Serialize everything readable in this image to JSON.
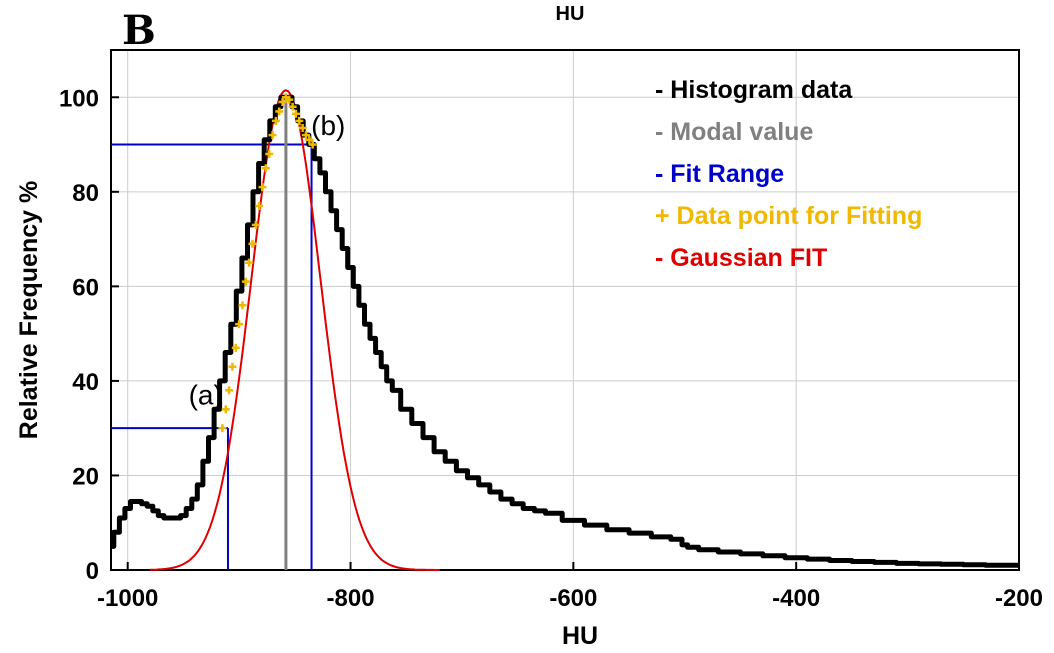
{
  "panel_label": "B",
  "top_label": "HU",
  "chart_data": {
    "type": "line",
    "xlabel": "HU",
    "ylabel": "Relative Frequency %",
    "xlim": [
      -1015,
      -200
    ],
    "ylim": [
      0,
      110
    ],
    "xticks": [
      -1000,
      -800,
      -600,
      -400,
      -200
    ],
    "yticks": [
      0,
      20,
      40,
      60,
      80,
      100
    ],
    "xtick_labels": [
      "-1000",
      "-800",
      "-600",
      "-400",
      "-200"
    ],
    "ytick_labels": [
      "0",
      "20",
      "40",
      "60",
      "80",
      "100"
    ],
    "grid": true,
    "legend_position": "top-right",
    "legend": [
      {
        "text": "- Histogram data",
        "color": "#000000"
      },
      {
        "text": "- Modal value",
        "color": "#808080"
      },
      {
        "text": "- Fit Range",
        "color": "#0000cc"
      },
      {
        "text": "+ Data point for Fitting",
        "color": "#f0b800"
      },
      {
        "text": "- Gaussian FIT",
        "color": "#e00000"
      }
    ],
    "series": [
      {
        "key": "histogram",
        "color": "#000000",
        "x": [
          -1015,
          -1010,
          -1005,
          -1000,
          -995,
          -990,
          -985,
          -980,
          -975,
          -970,
          -965,
          -960,
          -955,
          -950,
          -945,
          -940,
          -935,
          -930,
          -925,
          -920,
          -915,
          -910,
          -905,
          -900,
          -895,
          -890,
          -885,
          -880,
          -875,
          -870,
          -865,
          -860,
          -855,
          -850,
          -845,
          -840,
          -835,
          -830,
          -825,
          -820,
          -815,
          -810,
          -805,
          -800,
          -795,
          -790,
          -785,
          -780,
          -775,
          -770,
          -765,
          -760,
          -750,
          -740,
          -730,
          -720,
          -710,
          -700,
          -690,
          -680,
          -670,
          -660,
          -650,
          -640,
          -630,
          -620,
          -600,
          -580,
          -560,
          -540,
          -520,
          -505,
          -500,
          -495,
          -480,
          -460,
          -440,
          -420,
          -400,
          -380,
          -360,
          -340,
          -320,
          -300,
          -280,
          -260,
          -240,
          -220,
          -200
        ],
        "y": [
          5,
          8,
          11,
          13,
          14.5,
          14.5,
          14,
          13.5,
          12.5,
          11.5,
          11,
          11,
          11,
          11.5,
          13,
          15,
          18,
          23,
          28,
          34,
          40,
          46,
          52,
          59,
          66,
          73,
          80,
          86,
          91,
          95,
          98,
          100,
          100,
          98,
          95,
          92,
          90,
          87,
          84,
          80,
          76,
          72,
          68,
          64,
          60,
          56,
          52,
          49,
          46,
          43,
          40,
          38,
          34,
          31,
          28,
          25,
          23,
          21,
          19.5,
          18,
          16.5,
          15,
          14,
          13,
          12.5,
          12,
          10.5,
          9.5,
          8.5,
          7.8,
          7,
          6.5,
          5.3,
          4.8,
          4.3,
          3.8,
          3.4,
          3,
          2.6,
          2.3,
          2,
          1.8,
          1.6,
          1.4,
          1.3,
          1.2,
          1.1,
          1.0,
          1.0
        ]
      },
      {
        "key": "gaussian",
        "color": "#e00000",
        "mean": -858,
        "sigma": 31,
        "amplitude": 101.5,
        "x_range": [
          -980,
          -720
        ]
      },
      {
        "key": "fit_points",
        "color": "#f0b800",
        "x": [
          -915,
          -912,
          -909,
          -906,
          -903,
          -900,
          -897,
          -894,
          -891,
          -888,
          -885,
          -882,
          -879,
          -876,
          -873,
          -870,
          -867,
          -864,
          -861,
          -858,
          -855,
          -852,
          -849,
          -846,
          -843,
          -840,
          -837,
          -834
        ],
        "y": [
          30,
          34,
          38,
          43,
          47,
          52,
          56,
          61,
          65,
          69,
          73,
          77,
          81,
          85,
          88,
          92,
          95,
          97,
          99,
          100,
          99.5,
          98,
          96.5,
          95,
          93.5,
          92,
          91,
          90
        ]
      }
    ],
    "modal_value": -858,
    "fit_range": {
      "x_low": -910,
      "y_low": 30,
      "x_high": -835,
      "y_high": 90
    },
    "annotations": [
      {
        "text": "(a)",
        "x": -930,
        "y": 35
      },
      {
        "text": "(b)",
        "x": -820,
        "y": 92
      }
    ]
  }
}
